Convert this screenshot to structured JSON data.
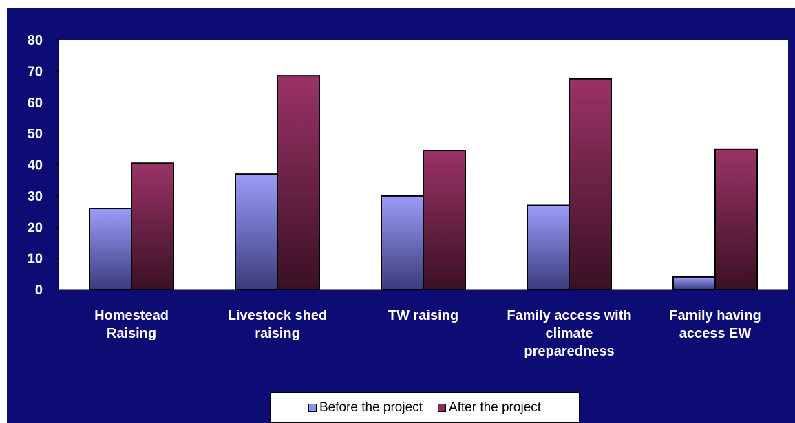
{
  "chart_data": {
    "type": "bar",
    "title": "",
    "xlabel": "",
    "ylabel": "",
    "ylim": [
      0,
      80
    ],
    "yticks": [
      0,
      10,
      20,
      30,
      40,
      50,
      60,
      70,
      80
    ],
    "categories": [
      [
        "Homestead",
        "Raising"
      ],
      [
        "Livestock shed",
        "raising"
      ],
      [
        "TW raising"
      ],
      [
        "Family access with",
        "climate",
        "preparedness"
      ],
      [
        "Family having",
        "access EW"
      ]
    ],
    "series": [
      {
        "name": "Before the project",
        "values": [
          26,
          37,
          30,
          27,
          4
        ],
        "color": "#9b9cf8",
        "color_dark": "#3b3c7c"
      },
      {
        "name": "After the project",
        "values": [
          40.5,
          68.5,
          44.5,
          67.5,
          45
        ],
        "color": "#9a3366",
        "color_dark": "#3a1024"
      }
    ],
    "legend_position": "bottom",
    "plot_background": "#ffffff",
    "frame_background": "#0c0c74",
    "grid": false
  }
}
